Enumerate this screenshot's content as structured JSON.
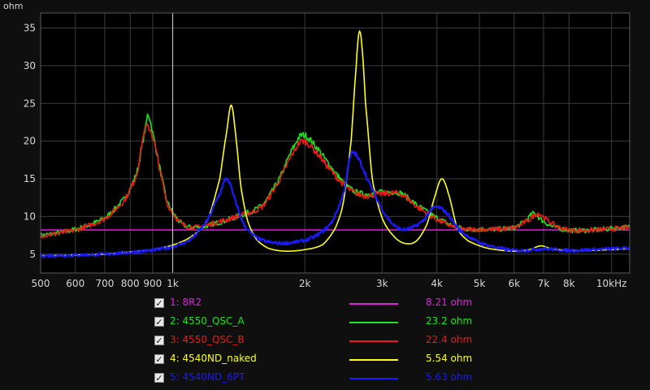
{
  "chart_data": {
    "type": "line",
    "ylabel": "ohm",
    "xscale": "log",
    "xlim": [
      500,
      11000
    ],
    "ylim": [
      2.5,
      37
    ],
    "xticks": [
      {
        "value": 500,
        "label": "500"
      },
      {
        "value": 600,
        "label": "600"
      },
      {
        "value": 700,
        "label": "700"
      },
      {
        "value": 800,
        "label": "800"
      },
      {
        "value": 900,
        "label": "900"
      },
      {
        "value": 1000,
        "label": "1k"
      },
      {
        "value": 2000,
        "label": "2k"
      },
      {
        "value": 3000,
        "label": "3k"
      },
      {
        "value": 4000,
        "label": "4k"
      },
      {
        "value": 5000,
        "label": "5k"
      },
      {
        "value": 6000,
        "label": "6k"
      },
      {
        "value": 7000,
        "label": "7k"
      },
      {
        "value": 8000,
        "label": "8k"
      },
      {
        "value": 10000,
        "label": "10kHz"
      }
    ],
    "yticks": [
      5,
      10,
      15,
      20,
      25,
      30,
      35
    ],
    "grid": true,
    "cursor_x": 1000,
    "series": [
      {
        "name": "1: 8R2",
        "value_label": "8.21 ohm",
        "color": "#e020e0",
        "noise": 0,
        "points": [
          [
            500,
            8.21
          ],
          [
            11000,
            8.21
          ]
        ]
      },
      {
        "name": "2: 4550_QSC_A",
        "value_label": "23.2 ohm",
        "color": "#19e619",
        "noise": 0.5,
        "points": [
          [
            500,
            7.5
          ],
          [
            600,
            8.3
          ],
          [
            700,
            9.8
          ],
          [
            780,
            12.5
          ],
          [
            830,
            16
          ],
          [
            870,
            22
          ],
          [
            880,
            23.5
          ],
          [
            900,
            21
          ],
          [
            930,
            17
          ],
          [
            970,
            12
          ],
          [
            1050,
            9
          ],
          [
            1150,
            8.6
          ],
          [
            1250,
            9.1
          ],
          [
            1400,
            10
          ],
          [
            1600,
            11.5
          ],
          [
            1750,
            15
          ],
          [
            1900,
            19.5
          ],
          [
            1980,
            20.8
          ],
          [
            2100,
            19.5
          ],
          [
            2300,
            16.5
          ],
          [
            2500,
            14
          ],
          [
            2700,
            13
          ],
          [
            3000,
            13.2
          ],
          [
            3300,
            13.1
          ],
          [
            3600,
            11.5
          ],
          [
            4000,
            9.8
          ],
          [
            4500,
            8.5
          ],
          [
            5000,
            8.3
          ],
          [
            6000,
            8.5
          ],
          [
            6400,
            9.5
          ],
          [
            6650,
            10.4
          ],
          [
            6900,
            9.6
          ],
          [
            7300,
            8.7
          ],
          [
            8000,
            8.2
          ],
          [
            9000,
            8.2
          ],
          [
            11000,
            8.6
          ]
        ]
      },
      {
        "name": "3: 4550_QSC_B",
        "value_label": "22.4 ohm",
        "color": "#f01818",
        "noise": 0.5,
        "points": [
          [
            500,
            7.5
          ],
          [
            600,
            8.2
          ],
          [
            700,
            9.7
          ],
          [
            780,
            12.3
          ],
          [
            830,
            15.8
          ],
          [
            860,
            21
          ],
          [
            880,
            21.8
          ],
          [
            900,
            20.5
          ],
          [
            930,
            16.8
          ],
          [
            970,
            11.8
          ],
          [
            1050,
            9
          ],
          [
            1150,
            8.6
          ],
          [
            1250,
            9.2
          ],
          [
            1400,
            10
          ],
          [
            1600,
            11.3
          ],
          [
            1750,
            14.8
          ],
          [
            1900,
            18.8
          ],
          [
            1980,
            20
          ],
          [
            2100,
            18.8
          ],
          [
            2300,
            16
          ],
          [
            2500,
            13.8
          ],
          [
            2700,
            12.8
          ],
          [
            3000,
            13
          ],
          [
            3300,
            13
          ],
          [
            3600,
            11.3
          ],
          [
            4000,
            9.6
          ],
          [
            4500,
            8.4
          ],
          [
            5000,
            8.3
          ],
          [
            6000,
            8.5
          ],
          [
            6500,
            9.6
          ],
          [
            6800,
            10.4
          ],
          [
            7100,
            9.6
          ],
          [
            7500,
            8.7
          ],
          [
            8000,
            8.2
          ],
          [
            9000,
            8.2
          ],
          [
            11000,
            8.5
          ]
        ]
      },
      {
        "name": "4: 4540ND_naked",
        "value_label": "5.54 ohm",
        "color": "#ffff1a",
        "noise": 0,
        "points": [
          [
            500,
            4.8
          ],
          [
            700,
            5
          ],
          [
            900,
            5.6
          ],
          [
            1000,
            6.2
          ],
          [
            1100,
            7.3
          ],
          [
            1200,
            9.5
          ],
          [
            1280,
            15
          ],
          [
            1330,
            21.5
          ],
          [
            1360,
            24.8
          ],
          [
            1390,
            21
          ],
          [
            1430,
            14
          ],
          [
            1480,
            9.5
          ],
          [
            1550,
            7
          ],
          [
            1650,
            5.8
          ],
          [
            1800,
            5.4
          ],
          [
            2000,
            5.6
          ],
          [
            2200,
            6.3
          ],
          [
            2350,
            8.5
          ],
          [
            2450,
            12
          ],
          [
            2550,
            20
          ],
          [
            2620,
            30
          ],
          [
            2660,
            34.5
          ],
          [
            2700,
            32.5
          ],
          [
            2750,
            25
          ],
          [
            2850,
            15
          ],
          [
            3000,
            9.8
          ],
          [
            3200,
            7.3
          ],
          [
            3400,
            6.4
          ],
          [
            3600,
            6.8
          ],
          [
            3800,
            9
          ],
          [
            3950,
            12.5
          ],
          [
            4100,
            15
          ],
          [
            4250,
            13
          ],
          [
            4450,
            8.5
          ],
          [
            4700,
            6.8
          ],
          [
            5200,
            5.8
          ],
          [
            6000,
            5.4
          ],
          [
            6500,
            5.6
          ],
          [
            6900,
            6.1
          ],
          [
            7300,
            5.7
          ],
          [
            8000,
            5.5
          ],
          [
            9000,
            5.5
          ],
          [
            11000,
            5.7
          ]
        ]
      },
      {
        "name": "5: 4540ND_6PT",
        "value_label": "5.63 ohm",
        "color": "#1a1aff",
        "noise": 0.35,
        "points": [
          [
            500,
            4.8
          ],
          [
            700,
            5
          ],
          [
            900,
            5.5
          ],
          [
            1000,
            6
          ],
          [
            1100,
            7
          ],
          [
            1200,
            9.5
          ],
          [
            1280,
            13
          ],
          [
            1330,
            15
          ],
          [
            1380,
            12.5
          ],
          [
            1450,
            9
          ],
          [
            1550,
            7.2
          ],
          [
            1700,
            6.5
          ],
          [
            1900,
            6.6
          ],
          [
            2100,
            7.3
          ],
          [
            2300,
            9.2
          ],
          [
            2450,
            13
          ],
          [
            2550,
            18.2
          ],
          [
            2650,
            17.6
          ],
          [
            2800,
            14.5
          ],
          [
            3000,
            11
          ],
          [
            3200,
            8.8
          ],
          [
            3400,
            8.3
          ],
          [
            3700,
            9.3
          ],
          [
            3950,
            11.2
          ],
          [
            4200,
            10.5
          ],
          [
            4500,
            8.2
          ],
          [
            5000,
            6.5
          ],
          [
            6000,
            5.5
          ],
          [
            7000,
            5.7
          ],
          [
            8000,
            5.5
          ],
          [
            9000,
            5.6
          ],
          [
            11000,
            5.8
          ]
        ]
      }
    ]
  },
  "legend": [
    {
      "label": "1: 8R2",
      "value": "8.21 ohm",
      "color": "#e020e0"
    },
    {
      "label": "2: 4550_QSC_A",
      "value": "23.2 ohm",
      "color": "#19e619"
    },
    {
      "label": "3: 4550_QSC_B",
      "value": "22.4 ohm",
      "color": "#f01818"
    },
    {
      "label": "4: 4540ND_naked",
      "value": "5.54 ohm",
      "color": "#ffff1a"
    },
    {
      "label": "5: 4540ND_6PT",
      "value": "5.63 ohm",
      "color": "#1a1aff"
    }
  ],
  "checkbox_mark": "✓"
}
